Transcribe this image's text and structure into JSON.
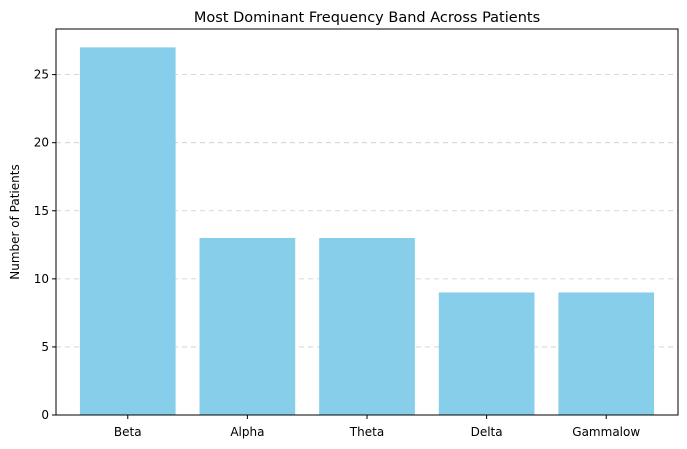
{
  "chart_data": {
    "type": "bar",
    "title": "Most Dominant Frequency Band Across Patients",
    "xlabel": "",
    "ylabel": "Number of Patients",
    "categories": [
      "Beta",
      "Alpha",
      "Theta",
      "Delta",
      "Gammalow"
    ],
    "values": [
      27,
      13,
      13,
      9,
      9
    ],
    "ylim": [
      0,
      28.35
    ],
    "yticks": [
      0,
      5,
      10,
      15,
      20,
      25
    ],
    "grid": "y-dashed",
    "bar_color": "#87CEEB"
  }
}
